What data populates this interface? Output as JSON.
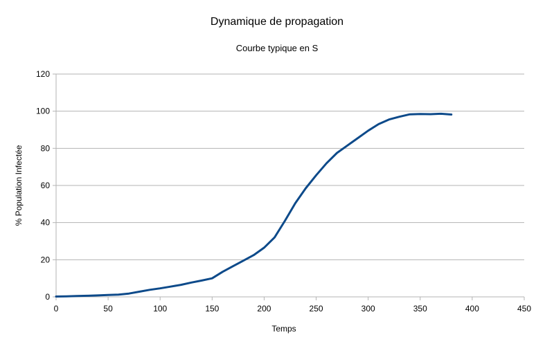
{
  "chart_data": {
    "type": "line",
    "title": "Dynamique de propagation",
    "subtitle": "Courbe typique en S",
    "xlabel": "Temps",
    "ylabel": "% Population Infectée",
    "xlim": [
      0,
      450
    ],
    "ylim": [
      0,
      120
    ],
    "xticks": [
      0,
      50,
      100,
      150,
      200,
      250,
      300,
      350,
      400,
      450
    ],
    "yticks": [
      0,
      20,
      40,
      60,
      80,
      100,
      120
    ],
    "grid": "horizontal",
    "legend": "none",
    "series": [
      {
        "color": "#0d4a8a",
        "x": [
          0,
          10,
          20,
          30,
          40,
          50,
          60,
          70,
          80,
          90,
          100,
          110,
          120,
          130,
          140,
          150,
          160,
          170,
          180,
          190,
          200,
          210,
          220,
          230,
          240,
          250,
          260,
          270,
          280,
          290,
          300,
          310,
          320,
          330,
          340,
          350,
          360,
          370,
          380
        ],
        "y": [
          0.2,
          0.3,
          0.5,
          0.6,
          0.8,
          1.0,
          1.2,
          1.8,
          2.8,
          3.8,
          4.6,
          5.5,
          6.5,
          7.7,
          8.8,
          10.0,
          13.5,
          16.5,
          19.5,
          22.5,
          26.5,
          32.0,
          41.0,
          50.5,
          58.5,
          65.5,
          72.0,
          77.5,
          81.5,
          85.5,
          89.5,
          93.0,
          95.5,
          97.0,
          98.3,
          98.5,
          98.4,
          98.6,
          98.2
        ]
      }
    ]
  }
}
